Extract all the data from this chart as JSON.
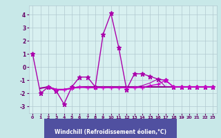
{
  "background_color": "#c8e8e8",
  "plot_bg_color": "#d8f0f0",
  "grid_color": "#b0c8d0",
  "line_color_main": "#880088",
  "line_color_alt": "#cc00cc",
  "xlabel": "Windchill (Refroidissement éolien,°C)",
  "xlabel_bg": "#6060a0",
  "xlabel_fg": "#ffffff",
  "xlim": [
    -0.5,
    23.5
  ],
  "ylim": [
    -3.5,
    4.7
  ],
  "yticks": [
    -3,
    -2,
    -1,
    0,
    1,
    2,
    3,
    4
  ],
  "xticks": [
    0,
    1,
    2,
    3,
    4,
    5,
    6,
    7,
    8,
    9,
    10,
    11,
    12,
    13,
    14,
    15,
    16,
    17,
    18,
    19,
    20,
    21,
    22,
    23
  ],
  "tick_color": "#660066",
  "series1": {
    "x": [
      0,
      1,
      2,
      3,
      4,
      5,
      6,
      7,
      8,
      9,
      10,
      11,
      12,
      13,
      14,
      15,
      16,
      17,
      18,
      19,
      20,
      21,
      22,
      23
    ],
    "y": [
      1.0,
      -2.0,
      -1.5,
      -1.8,
      -2.8,
      -1.5,
      -0.75,
      -0.75,
      -1.5,
      2.5,
      4.1,
      1.5,
      -1.7,
      -0.5,
      -0.5,
      -0.7,
      -0.9,
      -1.0,
      -1.5,
      -1.5,
      -1.5,
      -1.5,
      -1.5,
      -1.5
    ],
    "color": "#aa00aa",
    "lw": 1.0,
    "marker": "*",
    "ms": 5
  },
  "series2": {
    "x": [
      1,
      2,
      3,
      4,
      5,
      6,
      7,
      8,
      9,
      10,
      11,
      12,
      13,
      14,
      15,
      16,
      17,
      18,
      19,
      20,
      21,
      22,
      23
    ],
    "y": [
      -1.6,
      -1.5,
      -1.7,
      -1.7,
      -1.6,
      -1.5,
      -1.5,
      -1.5,
      -1.5,
      -1.5,
      -1.5,
      -1.5,
      -1.5,
      -1.5,
      -1.5,
      -1.5,
      -1.5,
      -1.5,
      -1.5,
      -1.5,
      -1.5,
      -1.5,
      -1.5
    ],
    "color": "#880088",
    "lw": 1.5,
    "marker": null,
    "ms": 0
  },
  "series3": {
    "x": [
      2,
      3,
      4,
      5,
      6,
      7,
      8,
      9,
      10,
      11,
      12,
      13,
      14,
      15,
      16,
      17,
      18,
      19,
      20,
      21,
      22,
      23
    ],
    "y": [
      -1.5,
      -1.7,
      -1.7,
      -1.6,
      -1.5,
      -1.55,
      -1.55,
      -1.55,
      -1.55,
      -1.55,
      -1.55,
      -1.55,
      -1.55,
      -1.4,
      -1.3,
      -1.0,
      -1.5,
      -1.5,
      -1.5,
      -1.5,
      -1.5,
      -1.5
    ],
    "color": "#cc00cc",
    "lw": 1.0,
    "marker": "+",
    "ms": 4
  },
  "series4": {
    "x": [
      1,
      2,
      3,
      4,
      5,
      6,
      7,
      8,
      9,
      10,
      11,
      12,
      13,
      14,
      15,
      16,
      17,
      18,
      19,
      20,
      21,
      22,
      23
    ],
    "y": [
      -1.6,
      -1.5,
      -1.7,
      -1.7,
      -1.6,
      -1.55,
      -1.55,
      -1.55,
      -1.55,
      -1.55,
      -1.55,
      -1.55,
      -1.55,
      -1.4,
      -1.2,
      -0.9,
      -1.5,
      -1.5,
      -1.5,
      -1.5,
      -1.5,
      -1.5,
      -1.5
    ],
    "color": "#aa00aa",
    "lw": 0.8,
    "marker": null,
    "ms": 0
  }
}
